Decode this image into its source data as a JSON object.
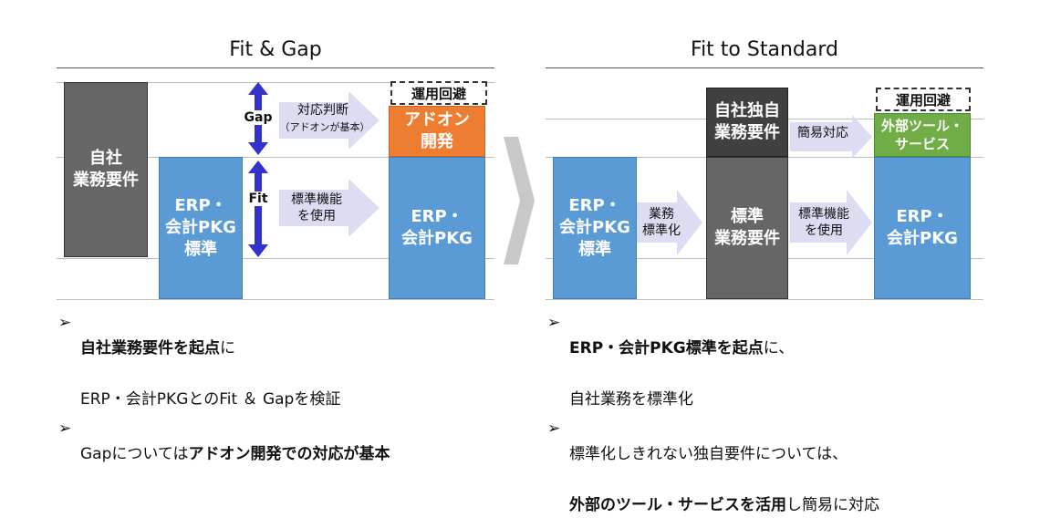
{
  "left": {
    "title": "Fit & Gap",
    "company_box": "自社\n業務要件",
    "erp_standard_box": "ERP・\n会計PKG\n標準",
    "gap_label": "Gap",
    "fit_label": "Fit",
    "gap_arrow_main": "対応判断",
    "gap_arrow_sub": "（アドオンが基本）",
    "fit_arrow": "標準機能\nを使用",
    "avoid_box": "運用回避",
    "addon_box": "アドオン\n開発",
    "erp_box": "ERP・\n会計PKG",
    "bullet1_bold": "自社業務要件を起点",
    "bullet1_rest": "に",
    "bullet1_line2": "ERP・会計PKGとのFit ＆ Gapを検証",
    "bullet2_plain": "Gapについては",
    "bullet2_bold": "アドオン開発での対応が基本"
  },
  "right": {
    "title": "Fit to Standard",
    "erp_standard_box": "ERP・\n会計PKG\n標準",
    "standardize_arrow": "業務\n標準化",
    "own_box": "自社独自\n業務要件",
    "standard_req_box": "標準\n業務要件",
    "simple_arrow": "簡易対応",
    "fit_arrow": "標準機能\nを使用",
    "avoid_box": "運用回避",
    "external_box": "外部ツール・\nサービス",
    "erp_box": "ERP・\n会計PKG",
    "bullet1_bold": "ERP・会計PKG標準を起点",
    "bullet1_rest": "に、",
    "bullet1_line2": "自社業務を標準化",
    "bullet2_plain": "標準化しきれない独自要件については、",
    "bullet2_bold": "外部のツール・サービスを活用",
    "bullet2_rest": "し簡易に対応"
  },
  "bullet_marker": "➢",
  "colors": {
    "blue": "#5b9bd5",
    "gray": "#666666",
    "dark_gray": "#404040",
    "orange": "#ed7d31",
    "green": "#70ad47",
    "arrow_fill": "#dcdcf2",
    "double_arrow": "#3333cc",
    "chevron": "#c8c8c8"
  },
  "icons": [
    "double-arrow-gap",
    "double-arrow-fit",
    "block-arrow-right",
    "chevron-right"
  ]
}
